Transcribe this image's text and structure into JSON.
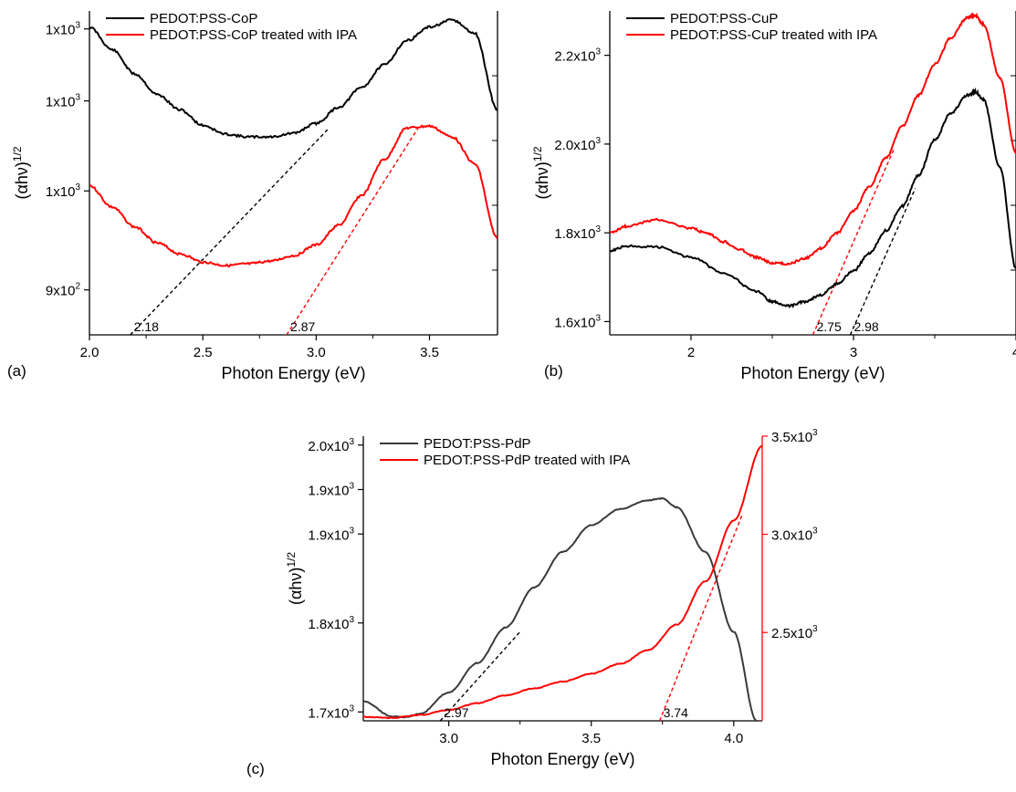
{
  "chart_data": [
    {
      "panel_label": "(a)",
      "type": "line",
      "xlabel": "Photon Energy (eV)",
      "ylabel": "(αhν)",
      "ylabel_sup": "1/2",
      "xlim": [
        2.0,
        3.8
      ],
      "ylim": [
        790,
        1150
      ],
      "xticks": [
        2.0,
        2.5,
        3.0,
        3.5
      ],
      "xtick_labels": [
        "2.0",
        "2.5",
        "3.0",
        "3.5"
      ],
      "yticks": [
        840,
        950,
        1050,
        1130
      ],
      "ytick_labels": [
        "9x10",
        "1x10",
        "1x10",
        "1x10"
      ],
      "ytick_sups": [
        "2",
        "3",
        "3",
        "3"
      ],
      "legend": [
        "PEDOT:PSS-CoP",
        "PEDOT:PSS-CoP treated with IPA"
      ],
      "legend_placement": "top-left",
      "series": [
        {
          "name": "PEDOT:PSS-CoP",
          "color": "#000000",
          "x": [
            2.0,
            2.1,
            2.2,
            2.3,
            2.4,
            2.5,
            2.6,
            2.7,
            2.8,
            2.9,
            3.0,
            3.1,
            3.2,
            3.3,
            3.4,
            3.5,
            3.6,
            3.7,
            3.8
          ],
          "y": [
            1132,
            1107,
            1080,
            1057,
            1040,
            1023,
            1013,
            1010,
            1010,
            1014,
            1025,
            1043,
            1065,
            1090,
            1117,
            1132,
            1140,
            1125,
            1040
          ]
        },
        {
          "name": "PEDOT:PSS-CoP treated with IPA",
          "color": "#ff0000",
          "x": [
            2.0,
            2.1,
            2.2,
            2.3,
            2.4,
            2.5,
            2.6,
            2.7,
            2.8,
            2.9,
            3.0,
            3.1,
            3.2,
            3.3,
            3.4,
            3.5,
            3.6,
            3.7,
            3.8
          ],
          "y": [
            956,
            932,
            910,
            892,
            880,
            871,
            867,
            869,
            872,
            878,
            890,
            912,
            945,
            985,
            1020,
            1022,
            1010,
            980,
            897
          ]
        }
      ],
      "tangents": [
        {
          "color": "#000000",
          "x": [
            2.18,
            3.05
          ],
          "y": [
            790,
            1018
          ]
        },
        {
          "color": "#ff0000",
          "x": [
            2.87,
            3.45
          ],
          "y": [
            790,
            1020
          ]
        }
      ],
      "annotations": [
        {
          "text": "2.18",
          "x": 2.18,
          "y": 790
        },
        {
          "text": "2.87",
          "x": 2.87,
          "y": 790
        }
      ]
    },
    {
      "panel_label": "(b)",
      "type": "line",
      "xlabel": "Photon Energy (eV)",
      "ylabel": "(αhν)",
      "ylabel_sup": "1/2",
      "xlim": [
        1.5,
        4.0
      ],
      "ylim": [
        1570,
        2300
      ],
      "xticks": [
        2,
        3,
        4
      ],
      "xtick_labels": [
        "2",
        "3",
        "4"
      ],
      "yticks": [
        1600,
        1800,
        2000,
        2200
      ],
      "ytick_labels": [
        "1.6x10",
        "1.8x10",
        "2.0x10",
        "2.2x10"
      ],
      "ytick_sups": [
        "3",
        "3",
        "3",
        "3"
      ],
      "legend": [
        "PEDOT:PSS-CuP",
        "PEDOT:PSS-CuP treated with IPA"
      ],
      "legend_placement": "top-left",
      "series": [
        {
          "name": "PEDOT:PSS-CuP",
          "color": "#000000",
          "x": [
            1.5,
            1.6,
            1.8,
            2.0,
            2.2,
            2.4,
            2.5,
            2.6,
            2.7,
            2.8,
            2.9,
            3.0,
            3.1,
            3.2,
            3.3,
            3.4,
            3.5,
            3.6,
            3.7,
            3.75,
            3.8,
            3.9,
            4.0
          ],
          "y": [
            1760,
            1770,
            1768,
            1745,
            1710,
            1668,
            1645,
            1635,
            1645,
            1660,
            1685,
            1715,
            1755,
            1805,
            1860,
            1930,
            2010,
            2070,
            2110,
            2118,
            2100,
            1950,
            1720
          ]
        },
        {
          "name": "PEDOT:PSS-CuP treated with IPA",
          "color": "#ff0000",
          "x": [
            1.5,
            1.6,
            1.8,
            2.0,
            2.1,
            2.2,
            2.3,
            2.4,
            2.5,
            2.6,
            2.7,
            2.8,
            2.9,
            3.0,
            3.1,
            3.2,
            3.3,
            3.4,
            3.5,
            3.6,
            3.7,
            3.75,
            3.8,
            3.9,
            4.0
          ],
          "y": [
            1800,
            1815,
            1830,
            1810,
            1798,
            1780,
            1762,
            1745,
            1732,
            1730,
            1742,
            1765,
            1800,
            1850,
            1905,
            1970,
            2040,
            2110,
            2180,
            2240,
            2285,
            2290,
            2270,
            2150,
            1980
          ]
        }
      ],
      "tangents": [
        {
          "color": "#ff0000",
          "x": [
            2.75,
            3.25
          ],
          "y": [
            1570,
            1990
          ]
        },
        {
          "color": "#000000",
          "x": [
            2.98,
            3.38
          ],
          "y": [
            1570,
            1900
          ]
        }
      ],
      "annotations": [
        {
          "text": "2.75",
          "x": 2.75,
          "y": 1570
        },
        {
          "text": "2.98",
          "x": 2.98,
          "y": 1570
        }
      ]
    },
    {
      "panel_label": "(c)",
      "type": "line",
      "xlabel": "Photon Energy (eV)",
      "ylabel": "(αhν)",
      "ylabel_sup": "1/2",
      "xlim": [
        2.7,
        4.1
      ],
      "ylim": [
        1690,
        2010
      ],
      "ylim_right": [
        2050,
        3500
      ],
      "xticks": [
        3.0,
        3.5,
        4.0
      ],
      "xtick_labels": [
        "3.0",
        "3.5",
        "4.0"
      ],
      "yticks": [
        1700,
        1800,
        1900,
        2000
      ],
      "ytick_labels": [
        "1.7x10",
        "1.8x10",
        "1.9x10",
        "2.0x10"
      ],
      "yticks_extra": [
        1950
      ],
      "yticks_extra_labels": [
        "1.9x10"
      ],
      "ytick_sups": [
        "3",
        "3",
        "3",
        "3"
      ],
      "yticks_right": [
        2500,
        3000,
        3500
      ],
      "ytick_right_labels": [
        "2.5x10",
        "3.0x10",
        "3.5x10"
      ],
      "ytick_right_sup": "3",
      "legend": [
        "PEDOT:PSS-PdP",
        "PEDOT:PSS-PdP treated with IPA"
      ],
      "legend_placement": "top-left",
      "series": [
        {
          "name": "PEDOT:PSS-PdP",
          "color": "#3a3a3a",
          "axis": "left",
          "x": [
            2.7,
            2.8,
            2.85,
            2.9,
            3.0,
            3.1,
            3.2,
            3.3,
            3.4,
            3.5,
            3.6,
            3.7,
            3.75,
            3.8,
            3.9,
            4.0,
            4.08
          ],
          "y": [
            1712,
            1695,
            1694,
            1698,
            1722,
            1755,
            1795,
            1840,
            1880,
            1910,
            1928,
            1938,
            1940,
            1930,
            1880,
            1790,
            1690
          ]
        },
        {
          "name": "PEDOT:PSS-PdP treated with IPA",
          "color": "#ff0000",
          "axis": "right",
          "x": [
            2.7,
            2.8,
            2.9,
            3.0,
            3.1,
            3.2,
            3.3,
            3.4,
            3.5,
            3.6,
            3.7,
            3.8,
            3.9,
            4.0,
            4.1
          ],
          "y": [
            2070,
            2065,
            2080,
            2105,
            2140,
            2180,
            2215,
            2250,
            2290,
            2340,
            2410,
            2540,
            2760,
            3070,
            3450
          ]
        }
      ],
      "tangents": [
        {
          "color": "#000000",
          "axis": "left",
          "x": [
            2.97,
            3.25
          ],
          "y": [
            1690,
            1790
          ]
        },
        {
          "color": "#ff0000",
          "axis": "right",
          "x": [
            3.74,
            4.03
          ],
          "y": [
            2050,
            3100
          ]
        }
      ],
      "annotations": [
        {
          "text": "2.97",
          "x": 2.97,
          "y": 1690
        },
        {
          "text": "3.74",
          "x": 3.74,
          "y": 1690
        }
      ]
    }
  ]
}
